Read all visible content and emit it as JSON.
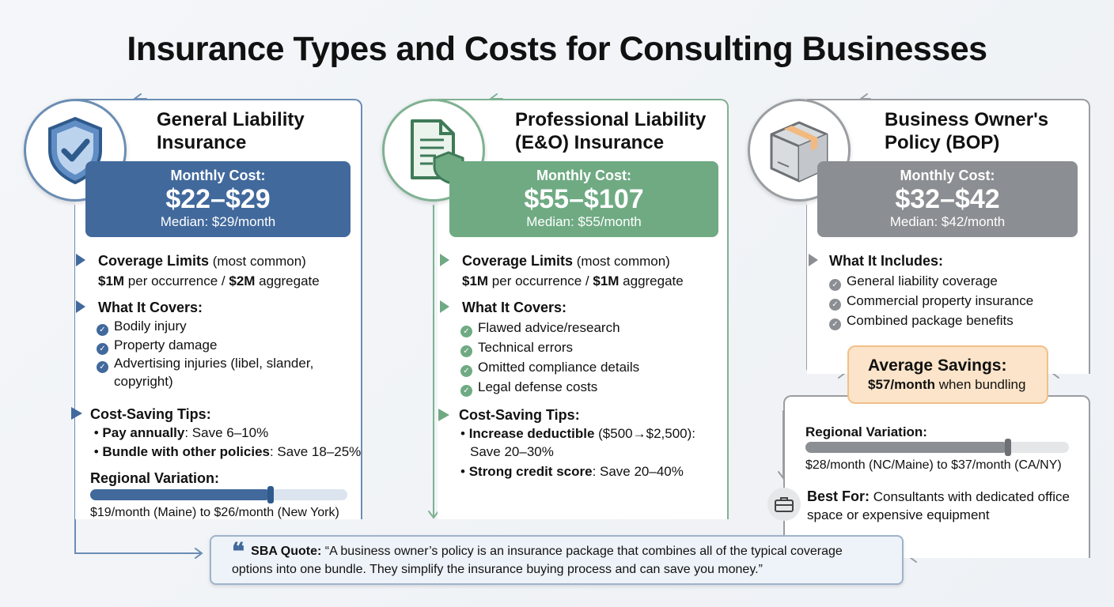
{
  "title": "Insurance Types and Costs for Consulting Businesses",
  "colors": {
    "blue": "#41699c",
    "green": "#6faa83",
    "gray": "#8b8e92",
    "orange": "#fbe4c9"
  },
  "cards": [
    {
      "title": "General Liability Insurance",
      "icon": "shield-check-icon",
      "cost_label": "Monthly Cost:",
      "cost": "$22–$29",
      "median": "Median: $29/month",
      "limits_h": "Coverage Limits",
      "limits_note": " (most common)",
      "limits_a": "$1M",
      "limits_b": " per occurrence / ",
      "limits_c": "$2M",
      "limits_d": " aggregate",
      "covers_h": "What It Covers:",
      "covers": [
        "Bodily injury",
        "Property damage",
        "Advertising injuries (libel, slander, copyright)"
      ],
      "tips_h": "Cost-Saving Tips:",
      "tips": [
        {
          "b": "Pay annually",
          "t": ": Save 6–10%"
        },
        {
          "b": "Bundle with other policies",
          "t": ": Save 18–25%"
        }
      ],
      "region_h": "Regional Variation:",
      "region_fill": 0.7,
      "region_text": "$19/month (Maine) to $26/month (New York)"
    },
    {
      "title": "Professional Liability (E&O) Insurance",
      "icon": "document-shield-icon",
      "cost_label": "Monthly Cost:",
      "cost": "$55–$107",
      "median": "Median: $55/month",
      "limits_h": "Coverage Limits",
      "limits_note": " (most common)",
      "limits_a": "$1M",
      "limits_b": " per occurrence / ",
      "limits_c": "$1M",
      "limits_d": " aggregate",
      "covers_h": "What It Covers:",
      "covers": [
        "Flawed advice/research",
        "Technical errors",
        "Omitted compliance details",
        "Legal defense costs"
      ],
      "tips_h": "Cost-Saving Tips:",
      "tips": [
        {
          "b": "Increase deductible",
          "t": " ($500→$2,500): Save 20–30%"
        },
        {
          "b": "Strong credit score",
          "t": ": Save 20–40%"
        }
      ]
    },
    {
      "title": "Business Owner's Policy (BOP)",
      "icon": "package-box-icon",
      "cost_label": "Monthly Cost:",
      "cost": "$32–$42",
      "median": "Median: $42/month",
      "includes_h": "What It Includes:",
      "includes": [
        "General liability coverage",
        "Commercial property insurance",
        "Combined package benefits"
      ],
      "savings_h": "Average Savings:",
      "savings_b": "$57/month",
      "savings_t": " when bundling",
      "region_h": "Regional Variation:",
      "region_fill": 0.77,
      "region_text": "$28/month (NC/Maine) to $37/month (CA/NY)",
      "best_h": "Best For:",
      "best_t": " Consultants with dedicated office space or expensive equipment",
      "best_icon": "briefcase-icon"
    }
  ],
  "quote": {
    "label": "SBA Quote:",
    "text": " “A business owner’s policy is an insurance package that combines all of the typical coverage options into one bundle. They simplify the insurance buying process and can save you money.”"
  }
}
